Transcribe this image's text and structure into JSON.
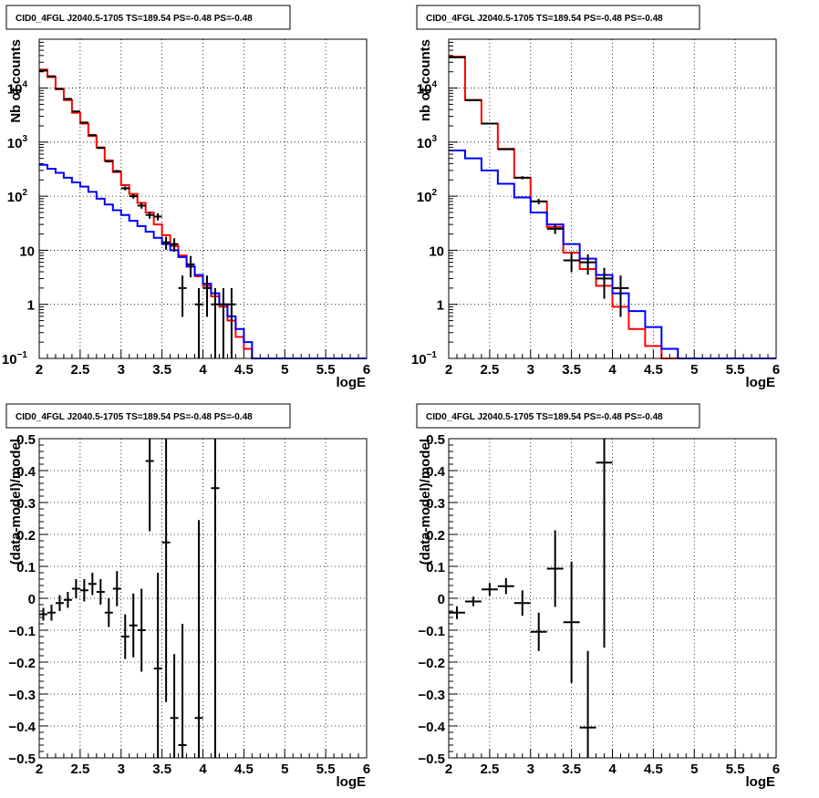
{
  "colors": {
    "data": "#000000",
    "model_total": "#ff0000",
    "model_component": "#0000ff",
    "grid": "#000000",
    "frame": "#000000"
  },
  "chart_data": [
    {
      "type": "line",
      "title": "CID0_4FGL J2040.5-1705 TS=189.54 PS=-0.48 PS=-0.48",
      "xlabel": "logE",
      "ylabel": "Nb of counts",
      "xlim": [
        2,
        6
      ],
      "ylim": [
        0.1,
        80000
      ],
      "yscale": "log",
      "grid": true,
      "xticks": [
        "2",
        "2.5",
        "3",
        "3.5",
        "4",
        "4.5",
        "5",
        "5.5",
        "6"
      ],
      "yticks": [
        {
          "value": 0.1,
          "label": "10",
          "exp": "−1"
        },
        {
          "value": 1,
          "label": "1",
          "exp": ""
        },
        {
          "value": 10,
          "label": "10",
          "exp": ""
        },
        {
          "value": 100,
          "label": "10",
          "exp": "2"
        },
        {
          "value": 1000,
          "label": "10",
          "exp": "3"
        },
        {
          "value": 10000,
          "label": "10",
          "exp": "4"
        }
      ],
      "bin_edges": [
        2.0,
        2.1,
        2.2,
        2.3,
        2.4,
        2.5,
        2.6,
        2.7,
        2.8,
        2.9,
        3.0,
        3.1,
        3.2,
        3.3,
        3.4,
        3.5,
        3.6,
        3.7,
        3.8,
        3.9,
        4.0,
        4.1,
        4.2,
        4.3,
        4.4,
        4.5,
        4.6,
        4.7,
        4.8,
        4.9,
        5.0,
        5.1,
        5.2,
        5.3,
        5.4,
        5.5,
        5.6,
        5.7,
        5.8,
        5.9,
        6.0
      ],
      "series": [
        {
          "name": "",
          "kind": "model_total",
          "values": [
            22000,
            16000,
            9500,
            6000,
            3500,
            2200,
            1300,
            800,
            460,
            280,
            160,
            110,
            75,
            50,
            30,
            19,
            12,
            8,
            5,
            3.3,
            2.2,
            1.4,
            0.9,
            0.5,
            0.25,
            0.15,
            0.1,
            0.1,
            0.1,
            0.1,
            0.1,
            0.1,
            0.1,
            0.1,
            0.1,
            0.1,
            0.1,
            0.1,
            0.1,
            0.1
          ]
        },
        {
          "name": "",
          "kind": "model_component",
          "values": [
            380,
            320,
            270,
            220,
            180,
            150,
            120,
            90,
            70,
            55,
            45,
            35,
            28,
            22,
            17,
            13,
            10,
            7.5,
            5,
            3.5,
            2.4,
            1.6,
            1.0,
            0.6,
            0.35,
            0.2,
            0.1,
            0.1,
            0.1,
            0.1,
            0.1,
            0.1,
            0.1,
            0.1,
            0.1,
            0.1,
            0.1,
            0.1,
            0.1,
            0.1
          ]
        }
      ],
      "points": [
        {
          "x": 2.05,
          "y": 21000
        },
        {
          "x": 2.15,
          "y": 16500
        },
        {
          "x": 2.25,
          "y": 9700
        },
        {
          "x": 2.35,
          "y": 6300
        },
        {
          "x": 2.45,
          "y": 3700
        },
        {
          "x": 2.55,
          "y": 2300
        },
        {
          "x": 2.65,
          "y": 1350
        },
        {
          "x": 2.75,
          "y": 780
        },
        {
          "x": 2.85,
          "y": 440
        },
        {
          "x": 2.95,
          "y": 290
        },
        {
          "x": 3.05,
          "y": 140
        },
        {
          "x": 3.15,
          "y": 100
        },
        {
          "x": 3.25,
          "y": 67
        },
        {
          "x": 3.35,
          "y": 45
        },
        {
          "x": 3.45,
          "y": 42
        },
        {
          "x": 3.55,
          "y": 14
        },
        {
          "x": 3.65,
          "y": 13
        },
        {
          "x": 3.75,
          "y": 2
        },
        {
          "x": 3.85,
          "y": 5.5
        },
        {
          "x": 3.95,
          "y": 1
        },
        {
          "x": 4.05,
          "y": 2
        },
        {
          "x": 4.15,
          "y": 1
        },
        {
          "x": 4.25,
          "y": 1
        },
        {
          "x": 4.35,
          "y": 1
        }
      ]
    },
    {
      "type": "line",
      "title": "CID0_4FGL J2040.5-1705 TS=189.54 PS=-0.48 PS=-0.48",
      "xlabel": "logE",
      "ylabel": "nb of counts",
      "xlim": [
        2,
        6
      ],
      "ylim": [
        0.1,
        80000
      ],
      "yscale": "log",
      "grid": true,
      "xticks": [
        "2",
        "2.5",
        "3",
        "3.5",
        "4",
        "4.5",
        "5",
        "5.5",
        "6"
      ],
      "yticks": [
        {
          "value": 0.1,
          "label": "10",
          "exp": "−1"
        },
        {
          "value": 1,
          "label": "1",
          "exp": ""
        },
        {
          "value": 10,
          "label": "10",
          "exp": ""
        },
        {
          "value": 100,
          "label": "10",
          "exp": "2"
        },
        {
          "value": 1000,
          "label": "10",
          "exp": "3"
        },
        {
          "value": 10000,
          "label": "10",
          "exp": "4"
        }
      ],
      "bin_edges": [
        2.0,
        2.2,
        2.4,
        2.6,
        2.8,
        3.0,
        3.2,
        3.4,
        3.6,
        3.8,
        4.0,
        4.2,
        4.4,
        4.6,
        4.8,
        5.0,
        5.2,
        5.4,
        5.6,
        5.8,
        6.0
      ],
      "series": [
        {
          "name": "",
          "kind": "model_total",
          "values": [
            38000,
            6000,
            2200,
            750,
            220,
            80,
            27,
            9,
            4.5,
            2.2,
            0.9,
            0.35,
            0.17,
            0.1,
            0.1,
            0.1,
            0.1,
            0.1,
            0.1,
            0.1
          ]
        },
        {
          "name": "",
          "kind": "model_component",
          "values": [
            700,
            500,
            300,
            170,
            95,
            50,
            30,
            13,
            7,
            3.5,
            1.6,
            0.75,
            0.38,
            0.15,
            0.1,
            0.1,
            0.1,
            0.1,
            0.1,
            0.1
          ]
        }
      ],
      "points": [
        {
          "x": 2.1,
          "y": 37000
        },
        {
          "x": 2.3,
          "y": 6000
        },
        {
          "x": 2.5,
          "y": 2200
        },
        {
          "x": 2.7,
          "y": 740
        },
        {
          "x": 2.9,
          "y": 220
        },
        {
          "x": 3.1,
          "y": 80
        },
        {
          "x": 3.3,
          "y": 25
        },
        {
          "x": 3.5,
          "y": 6.5
        },
        {
          "x": 3.7,
          "y": 6
        },
        {
          "x": 3.9,
          "y": 3
        },
        {
          "x": 4.1,
          "y": 2
        }
      ]
    },
    {
      "type": "scatter",
      "title": "CID0_4FGL J2040.5-1705 TS=189.54 PS=-0.48 PS=-0.48",
      "xlabel": "logE",
      "ylabel": "(data-model)/model",
      "xlim": [
        2,
        6
      ],
      "ylim": [
        -0.5,
        0.5
      ],
      "yscale": "linear",
      "grid": true,
      "xticks": [
        "2",
        "2.5",
        "3",
        "3.5",
        "4",
        "4.5",
        "5",
        "5.5",
        "6"
      ],
      "yticks": [
        {
          "value": -0.5,
          "label": "−0.5"
        },
        {
          "value": -0.4,
          "label": "−0.4"
        },
        {
          "value": -0.3,
          "label": "−0.3"
        },
        {
          "value": -0.2,
          "label": "−0.2"
        },
        {
          "value": -0.1,
          "label": "−0.1"
        },
        {
          "value": 0,
          "label": "0"
        },
        {
          "value": 0.1,
          "label": "0.1"
        },
        {
          "value": 0.2,
          "label": "0.2"
        },
        {
          "value": 0.3,
          "label": "0.3"
        },
        {
          "value": 0.4,
          "label": "0.4"
        },
        {
          "value": 0.5,
          "label": "0.5"
        }
      ],
      "points": [
        {
          "x": 2.05,
          "y": -0.05,
          "err": 0.02
        },
        {
          "x": 2.15,
          "y": -0.045,
          "err": 0.025
        },
        {
          "x": 2.25,
          "y": -0.015,
          "err": 0.025
        },
        {
          "x": 2.35,
          "y": -0.005,
          "err": 0.025
        },
        {
          "x": 2.45,
          "y": 0.03,
          "err": 0.03
        },
        {
          "x": 2.55,
          "y": 0.025,
          "err": 0.035
        },
        {
          "x": 2.65,
          "y": 0.045,
          "err": 0.035
        },
        {
          "x": 2.75,
          "y": 0.02,
          "err": 0.04
        },
        {
          "x": 2.85,
          "y": -0.045,
          "err": 0.045
        },
        {
          "x": 2.95,
          "y": 0.03,
          "err": 0.055
        },
        {
          "x": 3.05,
          "y": -0.12,
          "err": 0.07
        },
        {
          "x": 3.15,
          "y": -0.085,
          "err": 0.1
        },
        {
          "x": 3.25,
          "y": -0.1,
          "err": 0.13
        },
        {
          "x": 3.35,
          "y": 0.43,
          "err": 0.22
        },
        {
          "x": 3.45,
          "y": -0.22,
          "err": 0.3
        },
        {
          "x": 3.55,
          "y": 0.175,
          "err": 0.5
        },
        {
          "x": 3.65,
          "y": -0.375,
          "err": 0.2
        },
        {
          "x": 3.75,
          "y": -0.46,
          "err": 0.38
        },
        {
          "x": 3.95,
          "y": -0.375,
          "err": 0.62
        },
        {
          "x": 4.15,
          "y": 0.345,
          "err": 0.9
        }
      ]
    },
    {
      "type": "scatter",
      "title": "CID0_4FGL J2040.5-1705 TS=189.54 PS=-0.48 PS=-0.48",
      "xlabel": "logE",
      "ylabel": "(data-model)/model",
      "xlim": [
        2,
        6
      ],
      "ylim": [
        -0.5,
        0.5
      ],
      "yscale": "linear",
      "grid": true,
      "xticks": [
        "2",
        "2.5",
        "3",
        "3.5",
        "4",
        "4.5",
        "5",
        "5.5",
        "6"
      ],
      "yticks": [
        {
          "value": -0.5,
          "label": "−0.5"
        },
        {
          "value": -0.4,
          "label": "−0.4"
        },
        {
          "value": -0.3,
          "label": "−0.3"
        },
        {
          "value": -0.2,
          "label": "−0.2"
        },
        {
          "value": -0.1,
          "label": "−0.1"
        },
        {
          "value": 0,
          "label": "0"
        },
        {
          "value": 0.1,
          "label": "0.1"
        },
        {
          "value": 0.2,
          "label": "0.2"
        },
        {
          "value": 0.3,
          "label": "0.3"
        },
        {
          "value": 0.4,
          "label": "0.4"
        },
        {
          "value": 0.5,
          "label": "0.5"
        }
      ],
      "points": [
        {
          "x": 2.1,
          "y": -0.045,
          "err": 0.02
        },
        {
          "x": 2.3,
          "y": -0.01,
          "err": 0.015
        },
        {
          "x": 2.5,
          "y": 0.028,
          "err": 0.02
        },
        {
          "x": 2.7,
          "y": 0.038,
          "err": 0.025
        },
        {
          "x": 2.9,
          "y": -0.015,
          "err": 0.04
        },
        {
          "x": 3.1,
          "y": -0.105,
          "err": 0.06
        },
        {
          "x": 3.3,
          "y": 0.093,
          "err": 0.12
        },
        {
          "x": 3.5,
          "y": -0.075,
          "err": 0.19
        },
        {
          "x": 3.7,
          "y": -0.405,
          "err": 0.24
        },
        {
          "x": 3.9,
          "y": 0.425,
          "err": 0.58
        }
      ]
    }
  ]
}
